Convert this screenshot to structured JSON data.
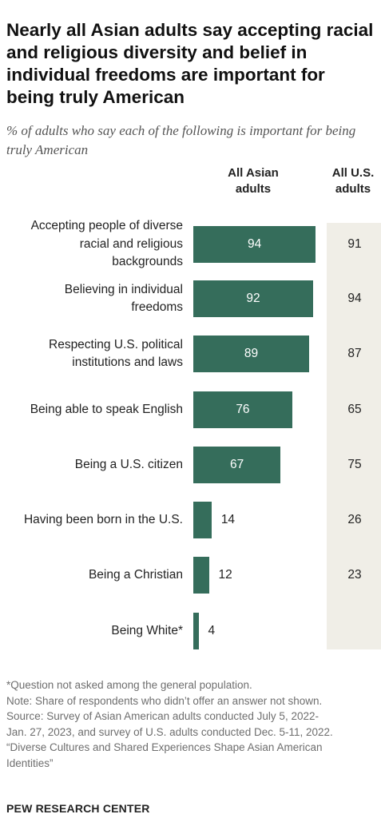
{
  "title": "Nearly all Asian adults say accepting racial and religious diversity and belief in individual freedoms are important for being truly American",
  "subtitle": "% of adults who say each of the following is important for being truly American",
  "columns": {
    "asian": "All Asian adults",
    "us": "All U.S. adults"
  },
  "chart_data": {
    "type": "bar",
    "orientation": "horizontal",
    "categories": [
      "Accepting people of diverse racial and religious backgrounds",
      "Believing in individual freedoms",
      "Respecting U.S. political institutions and laws",
      "Being able to speak English",
      "Being a U.S. citizen",
      "Having been born in the U.S.",
      "Being a Christian",
      "Being White*"
    ],
    "series": [
      {
        "name": "All Asian adults",
        "values": [
          94,
          92,
          89,
          76,
          67,
          14,
          12,
          4
        ]
      },
      {
        "name": "All U.S. adults",
        "values": [
          91,
          94,
          87,
          65,
          75,
          26,
          23,
          null
        ]
      }
    ],
    "xlim": [
      0,
      100
    ],
    "bar_color": "#356d5b",
    "us_column_bg": "#f0eee7"
  },
  "notes": [
    "*Question not asked among the general population.",
    "Note: Share of respondents who didn’t offer an answer not shown.",
    "Source: Survey of Asian American adults conducted July 5, 2022-",
    "Jan. 27, 2023, and survey of U.S. adults conducted Dec. 5-11, 2022.",
    "“Diverse Cultures and Shared Experiences Shape Asian American",
    "Identities”"
  ],
  "source_org": "PEW RESEARCH CENTER"
}
